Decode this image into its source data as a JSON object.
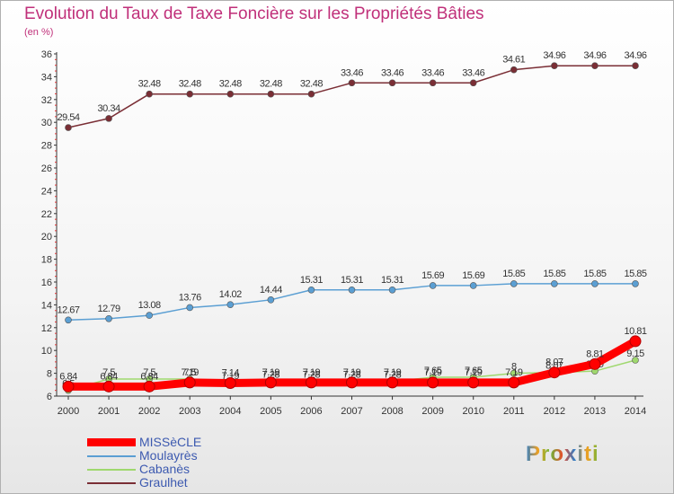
{
  "header": {
    "title": "Evolution du Taux de Taxe Foncière sur les Propriétés Bâties",
    "unit": "(en %)"
  },
  "logo": {
    "text": "Proxiti"
  },
  "chart_data": {
    "type": "line",
    "title": "Evolution du Taux de Taxe Foncière sur les Propriétés Bâties",
    "ylabel": "(en %)",
    "xlabel": "",
    "ylim": [
      6,
      36
    ],
    "yticks": [
      6,
      8,
      10,
      12,
      14,
      16,
      18,
      20,
      22,
      24,
      26,
      28,
      30,
      32,
      34,
      36
    ],
    "grid": false,
    "legend_position": "bottom-left",
    "categories": [
      "2000",
      "2001",
      "2002",
      "2003",
      "2004",
      "2005",
      "2006",
      "2007",
      "2008",
      "2009",
      "2010",
      "2011",
      "2012",
      "2013",
      "2014"
    ],
    "series": [
      {
        "name": "Graulhet",
        "color": "#7a2e35",
        "values": [
          29.54,
          30.34,
          32.48,
          32.48,
          32.48,
          32.48,
          32.48,
          33.46,
          33.46,
          33.46,
          33.46,
          34.61,
          34.96,
          34.96,
          34.96
        ],
        "labels": [
          "29.54",
          "30.34",
          "32.48",
          "32.48",
          "32.48",
          "32.48",
          "32.48",
          "33.46",
          "33.46",
          "33.46",
          "33.46",
          "34.61",
          "34.96",
          "34.96",
          "34.96"
        ]
      },
      {
        "name": "Moulayrès",
        "color": "#5b9fd3",
        "values": [
          12.67,
          12.79,
          13.08,
          13.76,
          14.02,
          14.44,
          15.31,
          15.31,
          15.31,
          15.69,
          15.69,
          15.85,
          15.85,
          15.85,
          15.85
        ],
        "labels": [
          "12.67",
          "12.79",
          "13.08",
          "13.76",
          "14.02",
          "14.44",
          "15.31",
          "15.31",
          "15.31",
          "15.69",
          "15.69",
          "15.85",
          "15.85",
          "15.85",
          "15.85"
        ]
      },
      {
        "name": "Cabanès",
        "color": "#9fd86e",
        "values": [
          6.5,
          7.5,
          7.5,
          7.5,
          7.19,
          7.28,
          7.28,
          7.28,
          7.28,
          7.65,
          7.65,
          8.0,
          8.07,
          8.19,
          9.15
        ],
        "labels": [
          "6.5",
          "7.5",
          "7.5",
          "7.5",
          "7.19",
          "7.28",
          "7.28",
          "7.28",
          "7.28",
          "7.65",
          "7.65",
          "8",
          "8.07",
          "8.19",
          "9.15"
        ]
      },
      {
        "name": "MISSèCLE",
        "color": "#ff0000",
        "values": [
          6.84,
          6.84,
          6.84,
          7.19,
          7.14,
          7.19,
          7.19,
          7.19,
          7.19,
          7.19,
          7.19,
          7.19,
          8.07,
          8.81,
          10.81
        ],
        "labels": [
          "6.84",
          "6.84",
          "6.84",
          "7.19",
          "7.14",
          "7.19",
          "7.19",
          "7.19",
          "7.19",
          "7.19",
          "7.19",
          "7.19",
          "8.07",
          "8.81",
          "10.81"
        ]
      }
    ]
  }
}
